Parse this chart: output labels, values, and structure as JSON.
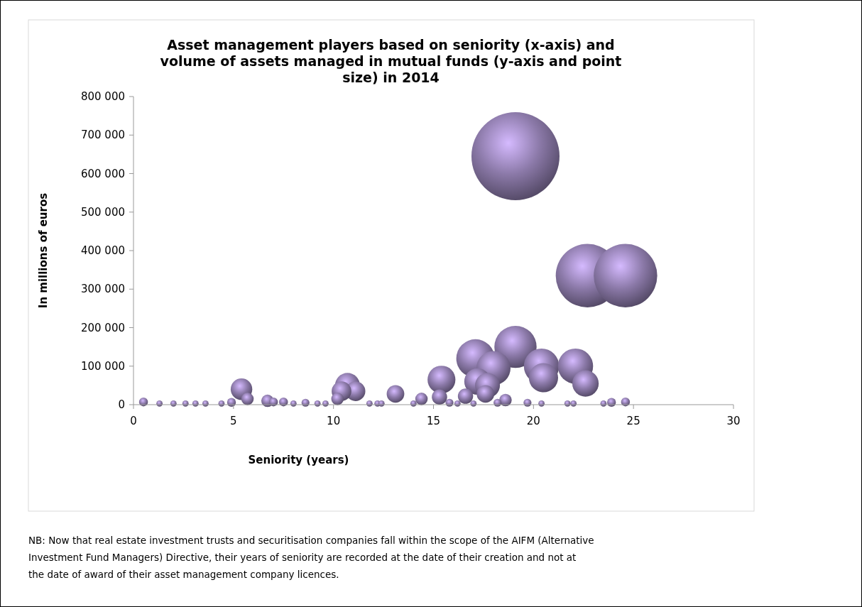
{
  "chart_data": {
    "type": "bubble",
    "title": "Asset management players based on seniority (x-axis) and volume of assets managed in mutual funds (y-axis and point size) in 2014",
    "xlabel": "Seniority (years)",
    "ylabel": "In millions of euros",
    "annotations": [
      "NB: Now that real estate investment trusts and securitisation companies fall within the scope of the AIFM (Alternative Investment Fund Managers) Directive, their years of seniority are recorded at the date of their creation and not at the date of award of their asset management company licences."
    ],
    "xlim": [
      0,
      30
    ],
    "xticks": [
      0,
      5,
      10,
      15,
      20,
      25,
      30
    ],
    "ylim": [
      0,
      800000
    ],
    "yticks": [
      {
        "value": 0,
        "label": "0"
      },
      {
        "value": 100000,
        "label": "100 000"
      },
      {
        "value": 200000,
        "label": "200 000"
      },
      {
        "value": 300000,
        "label": "300 000"
      },
      {
        "value": 400000,
        "label": "400 000"
      },
      {
        "value": 500000,
        "label": "500 000"
      },
      {
        "value": 600000,
        "label": "600 000"
      },
      {
        "value": 700000,
        "label": "700 000"
      },
      {
        "value": 800000,
        "label": "800 000"
      }
    ],
    "grid": false,
    "series": [
      {
        "color": "#8b79a8",
        "x": [
          19.1,
          22.7,
          24.6,
          19.1,
          17.1,
          18.0,
          20.4,
          20.5,
          22.1,
          22.6,
          17.2,
          17.7,
          15.4,
          10.7,
          11.1,
          10.4,
          10.2,
          5.4,
          5.7,
          13.1,
          14.4,
          15.3,
          16.6,
          17.6,
          18.6,
          0.5,
          1.3,
          2.0,
          2.6,
          3.1,
          3.6,
          4.4,
          4.9,
          6.7,
          7.0,
          7.5,
          8.0,
          8.6,
          9.2,
          9.6,
          11.8,
          12.2,
          12.4,
          14.0,
          15.8,
          16.2,
          17.0,
          18.2,
          19.7,
          20.4,
          21.7,
          22.0,
          23.5,
          23.9,
          24.6
        ],
        "values": [
          645000,
          335000,
          335000,
          150000,
          120000,
          95000,
          100000,
          70000,
          100000,
          55000,
          60000,
          50000,
          65000,
          50000,
          35000,
          35000,
          15000,
          40000,
          15000,
          28000,
          15000,
          20000,
          22000,
          28000,
          12000,
          7000,
          3000,
          3000,
          3000,
          3000,
          3000,
          3000,
          6000,
          10000,
          7000,
          7000,
          3000,
          5000,
          3000,
          3000,
          3000,
          3000,
          3000,
          3000,
          5000,
          3000,
          3000,
          5000,
          5000,
          3000,
          3000,
          3000,
          3000,
          6000,
          7000
        ],
        "sizes": [
          1,
          0.52,
          0.52,
          0.23,
          0.19,
          0.15,
          0.16,
          0.11,
          0.16,
          0.09,
          0.09,
          0.08,
          0.1,
          0.08,
          0.05,
          0.05,
          0.02,
          0.06,
          0.02,
          0.04,
          0.02,
          0.03,
          0.03,
          0.04,
          0.02,
          0.01,
          0.005,
          0.005,
          0.005,
          0.005,
          0.005,
          0.005,
          0.01,
          0.02,
          0.01,
          0.01,
          0.005,
          0.008,
          0.005,
          0.005,
          0.005,
          0.005,
          0.005,
          0.005,
          0.008,
          0.005,
          0.005,
          0.008,
          0.008,
          0.005,
          0.005,
          0.005,
          0.005,
          0.01,
          0.01
        ]
      }
    ]
  }
}
